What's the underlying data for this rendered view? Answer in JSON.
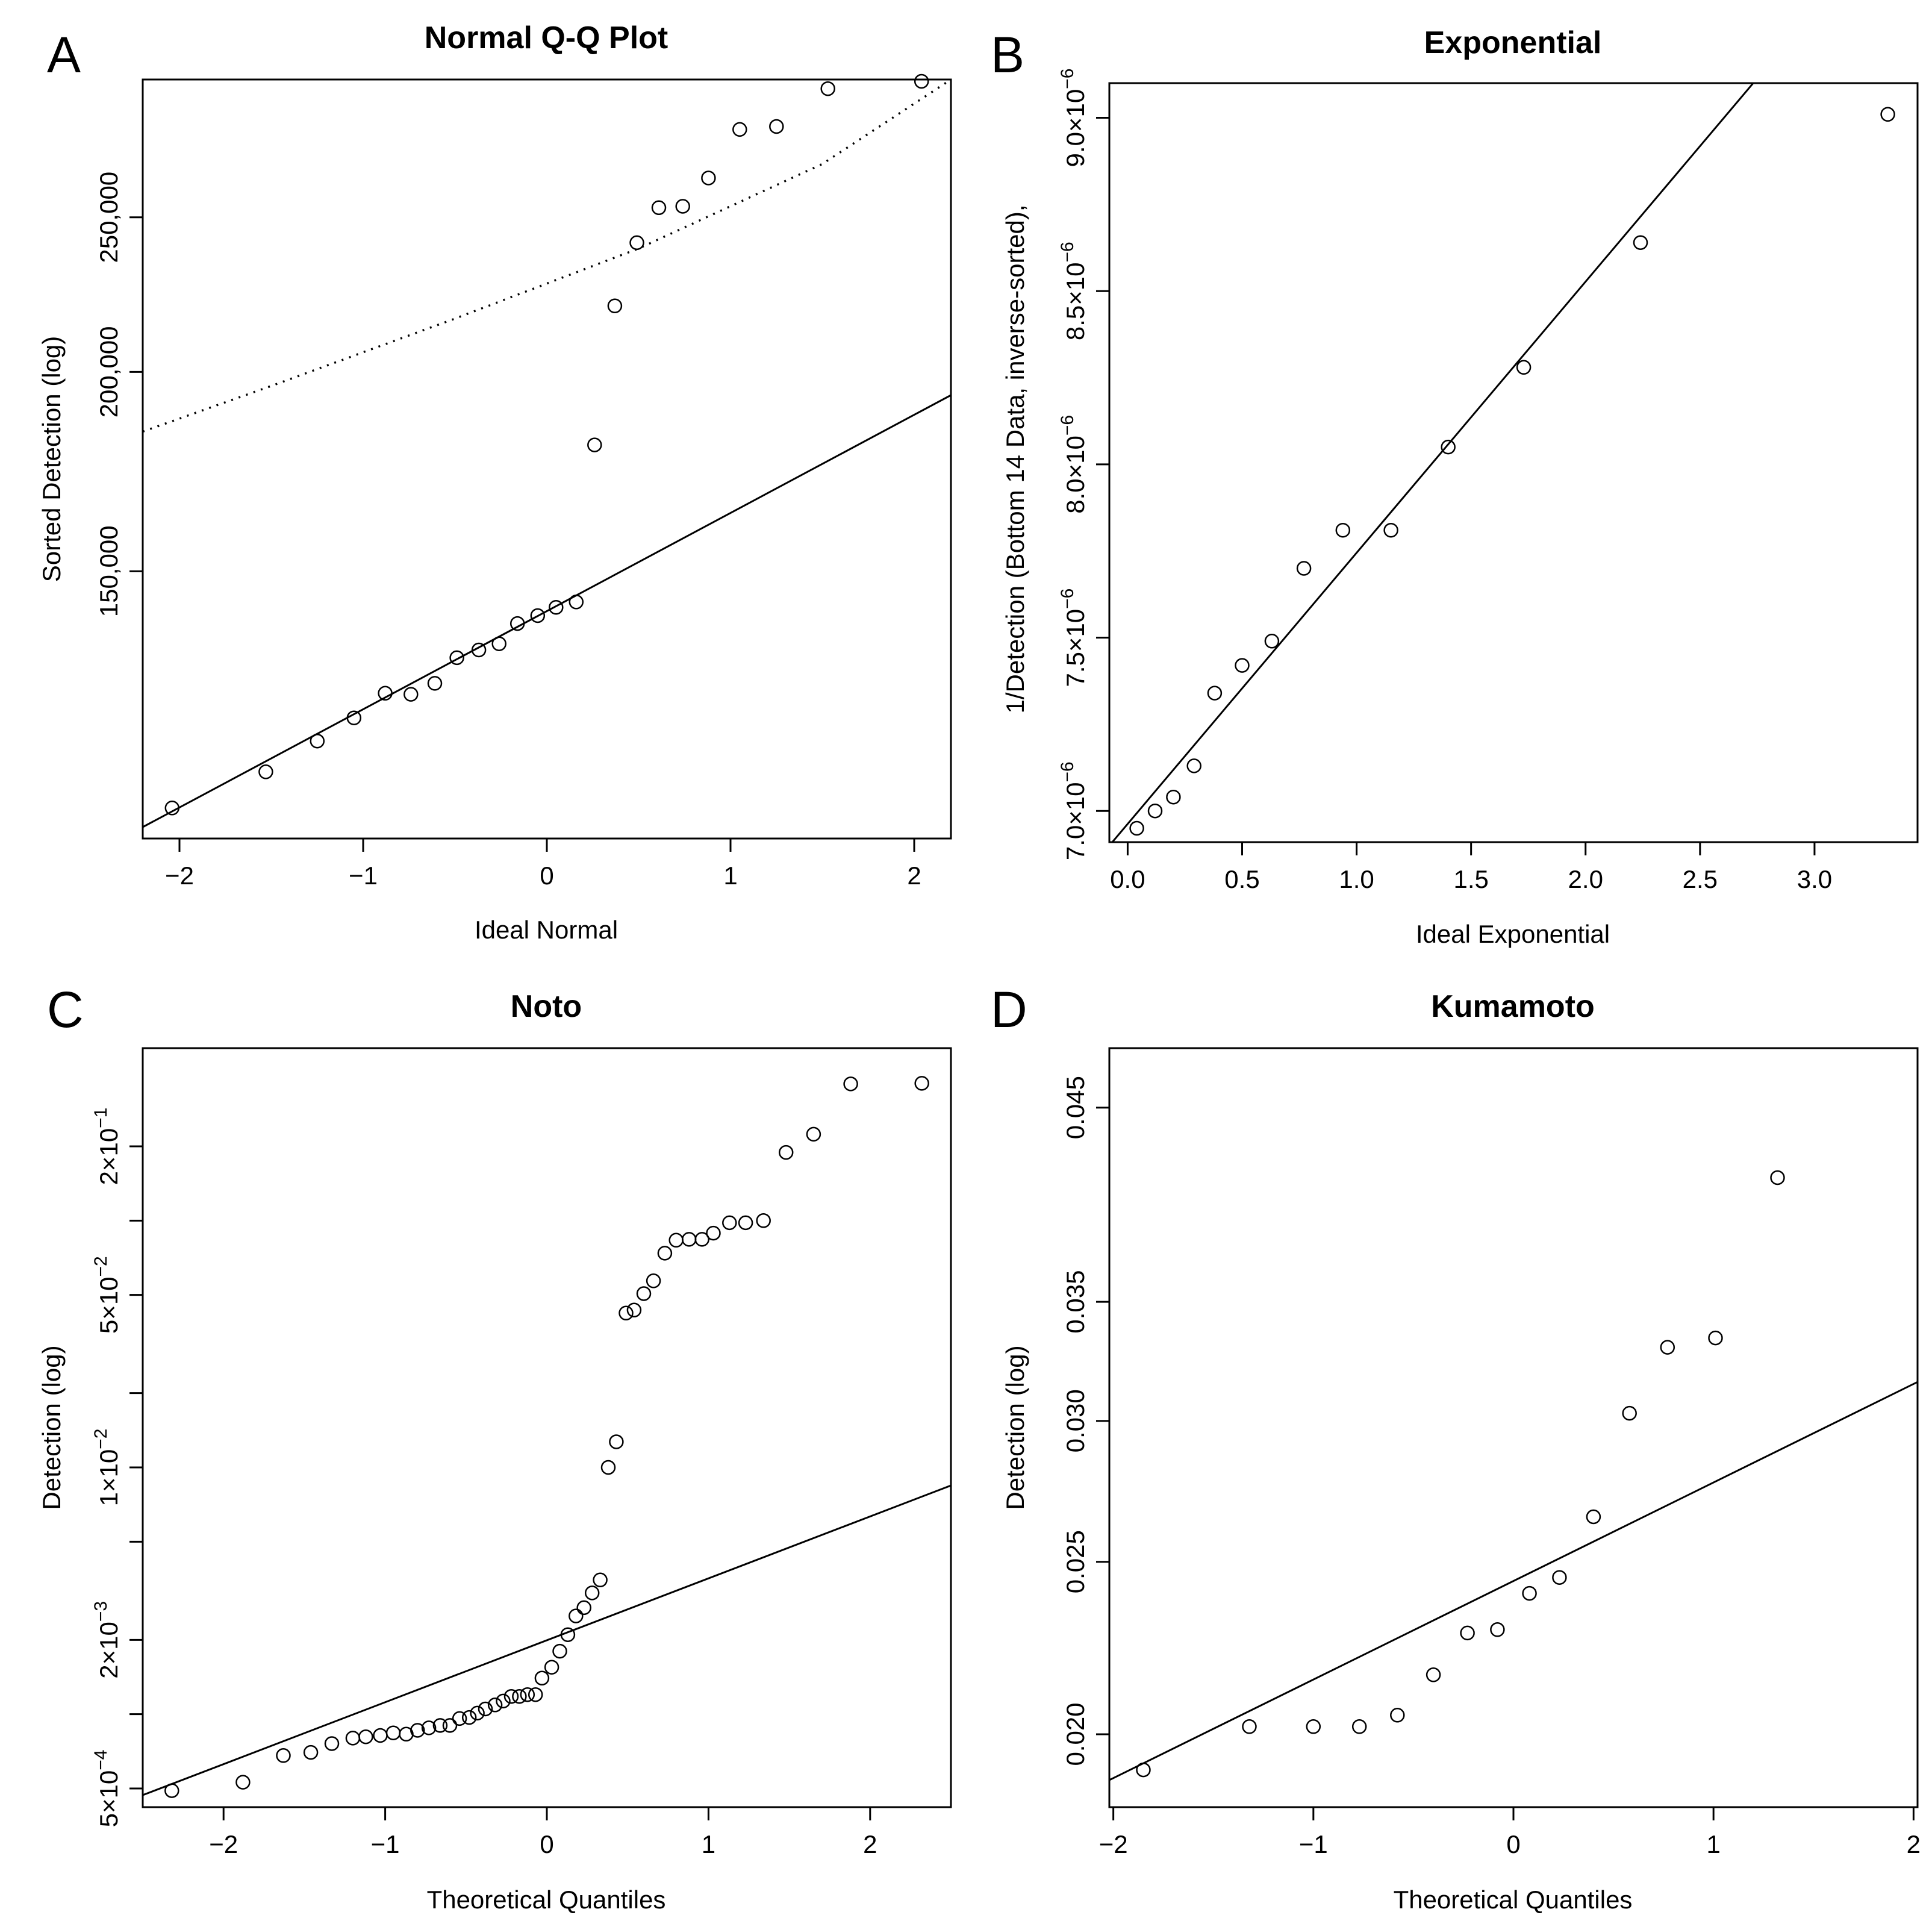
{
  "chart_data": [
    {
      "panel": "A",
      "type": "scatter",
      "title": "Normal Q-Q Plot",
      "xlabel": "Ideal Normal",
      "ylabel": "Sorted Detection (log)",
      "y_scale": "log",
      "xlim": [
        -2.2,
        2.2
      ],
      "ylim": [
        102000,
        305000
      ],
      "x_ticks": [
        {
          "value": -2,
          "label": "−2"
        },
        {
          "value": -1,
          "label": "−1"
        },
        {
          "value": 0,
          "label": "0"
        },
        {
          "value": 1,
          "label": "1"
        },
        {
          "value": 2,
          "label": "2"
        }
      ],
      "y_ticks": [
        {
          "value": 150000,
          "label": "150,000"
        },
        {
          "value": 200000,
          "label": "200,000"
        },
        {
          "value": 250000,
          "label": "250,000"
        }
      ],
      "points": [
        [
          -2.04,
          106600
        ],
        [
          -1.53,
          112300
        ],
        [
          -1.25,
          117400
        ],
        [
          -1.05,
          121400
        ],
        [
          -0.88,
          125800
        ],
        [
          -0.74,
          125600
        ],
        [
          -0.61,
          127600
        ],
        [
          -0.49,
          132400
        ],
        [
          -0.37,
          133900
        ],
        [
          -0.26,
          135100
        ],
        [
          -0.16,
          139100
        ],
        [
          -0.05,
          140700
        ],
        [
          0.05,
          142400
        ],
        [
          0.16,
          143500
        ],
        [
          0.26,
          180000
        ],
        [
          0.37,
          220000
        ],
        [
          0.49,
          241000
        ],
        [
          0.61,
          253500
        ],
        [
          0.74,
          254000
        ],
        [
          0.88,
          264600
        ],
        [
          1.05,
          283800
        ],
        [
          1.25,
          285000
        ],
        [
          1.53,
          301000
        ],
        [
          2.04,
          304200
        ]
      ],
      "ref_lines": [
        {
          "style": "solid",
          "points": [
            [
              -2.2,
              103700
            ],
            [
              2.2,
              193400
            ]
          ]
        },
        {
          "style": "dotted",
          "points": [
            [
              -2.2,
              183500
            ],
            [
              -1.5,
              196000
            ],
            [
              -0.5,
              216000
            ],
            [
              0.5,
              239000
            ],
            [
              1.5,
              270000
            ],
            [
              2.2,
              305000
            ]
          ]
        }
      ]
    },
    {
      "panel": "B",
      "type": "scatter",
      "title": "Exponential",
      "xlabel": "Ideal Exponential",
      "ylabel": "1/Detection (Bottom 14 Data, inverse-sorted),",
      "y_scale": "linear",
      "xlim": [
        -0.08,
        3.45
      ],
      "ylim": [
        6.91e-06,
        9.1e-06
      ],
      "x_ticks": [
        {
          "value": 0,
          "label": "0.0"
        },
        {
          "value": 0.5,
          "label": "0.5"
        },
        {
          "value": 1,
          "label": "1.0"
        },
        {
          "value": 1.5,
          "label": "1.5"
        },
        {
          "value": 2,
          "label": "2.0"
        },
        {
          "value": 2.5,
          "label": "2.5"
        },
        {
          "value": 3,
          "label": "3.0"
        }
      ],
      "y_ticks": [
        {
          "value": 7e-06,
          "mantissa": "7.0",
          "exp": "−6"
        },
        {
          "value": 7.5e-06,
          "mantissa": "7.5",
          "exp": "−6"
        },
        {
          "value": 8e-06,
          "mantissa": "8.0",
          "exp": "−6"
        },
        {
          "value": 8.5e-06,
          "mantissa": "8.5",
          "exp": "−6"
        },
        {
          "value": 9e-06,
          "mantissa": "9.0",
          "exp": "−6"
        }
      ],
      "tick_times": "×10",
      "points": [
        [
          0.04,
          6.95e-06
        ],
        [
          0.12,
          7e-06
        ],
        [
          0.2,
          7.04e-06
        ],
        [
          0.29,
          7.13e-06
        ],
        [
          0.38,
          7.34e-06
        ],
        [
          0.5,
          7.42e-06
        ],
        [
          0.63,
          7.49e-06
        ],
        [
          0.77,
          7.7e-06
        ],
        [
          0.94,
          7.81e-06
        ],
        [
          1.15,
          7.81e-06
        ],
        [
          1.4,
          8.05e-06
        ],
        [
          1.73,
          8.28e-06
        ],
        [
          2.24,
          8.64e-06
        ],
        [
          3.32,
          9.01e-06
        ]
      ],
      "ref_lines": [
        {
          "style": "solid",
          "points": [
            [
              -0.08,
              6.9e-06
            ],
            [
              2.86,
              9.2e-06
            ]
          ]
        }
      ]
    },
    {
      "panel": "C",
      "type": "scatter",
      "title": "Noto",
      "xlabel": "Theoretical Quantiles",
      "ylabel": "Detection (log)",
      "y_scale": "log",
      "xlim": [
        -2.5,
        2.5
      ],
      "ylim": [
        0.00042,
        0.5
      ],
      "x_ticks": [
        {
          "value": -2,
          "label": "−2"
        },
        {
          "value": -1,
          "label": "−1"
        },
        {
          "value": 0,
          "label": "0"
        },
        {
          "value": 1,
          "label": "1"
        },
        {
          "value": 2,
          "label": "2"
        }
      ],
      "y_ticks": [
        {
          "value": 0.0005,
          "mantissa": "5",
          "exp": "−4"
        },
        {
          "value": 0.002,
          "mantissa": "2",
          "exp": "−3"
        },
        {
          "value": 0.01,
          "mantissa": "1",
          "exp": "−2"
        },
        {
          "value": 0.05,
          "mantissa": "5",
          "exp": "−2"
        },
        {
          "value": 0.2,
          "mantissa": "2",
          "exp": "−1"
        }
      ],
      "minor_y_ticks": [
        0.001,
        0.005,
        0.02,
        0.1
      ],
      "tick_times": "×10",
      "points": [
        [
          -2.32,
          0.00049
        ],
        [
          -1.88,
          0.00053
        ],
        [
          -1.63,
          0.00068
        ],
        [
          -1.46,
          0.0007
        ],
        [
          -1.33,
          0.00076
        ],
        [
          -1.2,
          0.0008
        ],
        [
          -1.12,
          0.00081
        ],
        [
          -1.03,
          0.00082
        ],
        [
          -0.95,
          0.00084
        ],
        [
          -0.87,
          0.00083
        ],
        [
          -0.8,
          0.00086
        ],
        [
          -0.73,
          0.00088
        ],
        [
          -0.66,
          0.0009
        ],
        [
          -0.6,
          0.0009
        ],
        [
          -0.54,
          0.00096
        ],
        [
          -0.48,
          0.00097
        ],
        [
          -0.43,
          0.00101
        ],
        [
          -0.38,
          0.00105
        ],
        [
          -0.32,
          0.00109
        ],
        [
          -0.27,
          0.00113
        ],
        [
          -0.22,
          0.00118
        ],
        [
          -0.17,
          0.00118
        ],
        [
          -0.12,
          0.0012
        ],
        [
          -0.07,
          0.0012
        ],
        [
          -0.03,
          0.0014
        ],
        [
          0.03,
          0.00155
        ],
        [
          0.08,
          0.0018
        ],
        [
          0.13,
          0.0021
        ],
        [
          0.18,
          0.0025
        ],
        [
          0.23,
          0.0027
        ],
        [
          0.28,
          0.0031
        ],
        [
          0.33,
          0.0035
        ],
        [
          0.38,
          0.01
        ],
        [
          0.43,
          0.0127
        ],
        [
          0.49,
          0.0422
        ],
        [
          0.54,
          0.0434
        ],
        [
          0.6,
          0.0506
        ],
        [
          0.66,
          0.057
        ],
        [
          0.73,
          0.0738
        ],
        [
          0.8,
          0.0833
        ],
        [
          0.88,
          0.084
        ],
        [
          0.96,
          0.084
        ],
        [
          1.03,
          0.089
        ],
        [
          1.13,
          0.098
        ],
        [
          1.23,
          0.098
        ],
        [
          1.34,
          0.1
        ],
        [
          1.48,
          0.189
        ],
        [
          1.65,
          0.224
        ],
        [
          1.88,
          0.358
        ],
        [
          2.32,
          0.36
        ]
      ],
      "ref_lines": [
        {
          "style": "solid",
          "points": [
            [
              -2.5,
              0.00047
            ],
            [
              2.5,
              0.00845
            ]
          ]
        }
      ]
    },
    {
      "panel": "D",
      "type": "scatter",
      "title": "Kumamoto",
      "xlabel": "Theoretical Quantiles",
      "ylabel": "Detection (log)",
      "y_scale": "log",
      "xlim": [
        -2.02,
        2.02
      ],
      "ylim": [
        0.0182,
        0.0486
      ],
      "x_ticks": [
        {
          "value": -2,
          "label": "−2"
        },
        {
          "value": -1,
          "label": "−1"
        },
        {
          "value": 0,
          "label": "0"
        },
        {
          "value": 1,
          "label": "1"
        },
        {
          "value": 2,
          "label": "2"
        }
      ],
      "y_ticks": [
        {
          "value": 0.02,
          "label": "0.020"
        },
        {
          "value": 0.025,
          "label": "0.025"
        },
        {
          "value": 0.03,
          "label": "0.030"
        },
        {
          "value": 0.035,
          "label": "0.035"
        },
        {
          "value": 0.045,
          "label": "0.045"
        }
      ],
      "points": [
        [
          -1.85,
          0.0191
        ],
        [
          -1.32,
          0.0202
        ],
        [
          -1.0,
          0.0202
        ],
        [
          -0.77,
          0.0202
        ],
        [
          -0.58,
          0.0205
        ],
        [
          -0.4,
          0.0216
        ],
        [
          -0.23,
          0.0228
        ],
        [
          -0.08,
          0.0229
        ],
        [
          0.08,
          0.024
        ],
        [
          0.23,
          0.0245
        ],
        [
          0.4,
          0.0265
        ],
        [
          0.58,
          0.0303
        ],
        [
          0.77,
          0.033
        ],
        [
          1.01,
          0.0334
        ],
        [
          1.32,
          0.0411
        ]
      ],
      "ref_lines": [
        {
          "style": "solid",
          "points": [
            [
              -2.02,
              0.01885
            ],
            [
              2.02,
              0.03155
            ]
          ]
        }
      ]
    }
  ]
}
